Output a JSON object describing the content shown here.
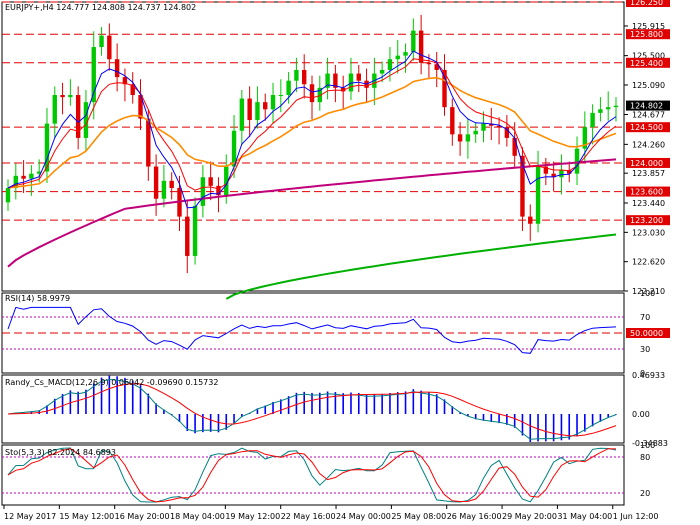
{
  "chart_data": [
    {
      "type": "candlestick",
      "title": "EURJPY+,H4  124.777 124.808 124.737 124.802",
      "ylim": [
        122.21,
        126.25
      ],
      "yticks": [
        122.21,
        122.62,
        123.03,
        123.44,
        123.857,
        124.26,
        124.677,
        125.09,
        125.5,
        125.915
      ],
      "ytick_labels": [
        "122.210",
        "122.620",
        "123.030",
        "123.440",
        "123.857",
        "124.260",
        "124.677",
        "125.090",
        "125.500",
        "125.915"
      ],
      "levels": [
        {
          "value": 126.25,
          "label": "126.250"
        },
        {
          "value": 125.8,
          "label": "125.800"
        },
        {
          "value": 125.4,
          "label": "125.400"
        },
        {
          "value": 124.5,
          "label": "124.500"
        },
        {
          "value": 124.0,
          "label": "124.000"
        },
        {
          "value": 123.6,
          "label": "123.600"
        },
        {
          "value": 123.2,
          "label": "123.200"
        }
      ],
      "current_price": {
        "value": 124.802,
        "label": "124.802"
      },
      "xtick_labels": [
        "12 May 2017",
        "15 May 12:00",
        "16 May 20:00",
        "18 May 04:00",
        "19 May 12:00",
        "22 May 16:00",
        "24 May 00:00",
        "25 May 08:00",
        "26 May 16:00",
        "29 May 20:00",
        "31 May 04:00",
        "1 Jun 12:00"
      ],
      "closes": [
        123.65,
        123.82,
        123.78,
        123.85,
        123.88,
        124.55,
        124.95,
        124.92,
        124.95,
        124.35,
        124.85,
        125.62,
        125.78,
        125.45,
        125.2,
        125.1,
        124.95,
        124.62,
        123.95,
        123.5,
        123.75,
        123.65,
        123.25,
        122.7,
        123.4,
        123.8,
        123.68,
        123.55,
        123.95,
        124.45,
        124.9,
        124.6,
        124.85,
        124.75,
        124.95,
        124.95,
        125.15,
        125.3,
        125.1,
        124.85,
        125.05,
        125.25,
        125.05,
        125.0,
        125.25,
        125.15,
        125.05,
        125.25,
        125.3,
        125.45,
        125.5,
        125.55,
        125.85,
        125.4,
        125.38,
        125.3,
        124.78,
        124.4,
        124.3,
        124.4,
        124.45,
        124.55,
        124.52,
        124.5,
        124.35,
        124.1,
        123.25,
        123.15,
        123.95,
        123.85,
        123.8,
        123.9,
        123.85,
        124.2,
        124.5,
        124.7,
        124.75,
        124.78,
        124.8
      ],
      "series": [
        {
          "name": "",
          "color": "#0000ff"
        },
        {
          "name": "",
          "color": "#ff0000"
        },
        {
          "name": "",
          "color": "#ff8c00"
        },
        {
          "name": "",
          "color": "#c0007a"
        },
        {
          "name": "",
          "color": "#00b000"
        }
      ],
      "up_color": "#00c800",
      "down_color": "#e00000"
    },
    {
      "type": "line",
      "title": "RSI(14) 58.9979",
      "ylim": [
        0,
        100
      ],
      "yticks": [
        0,
        30,
        50,
        70,
        100
      ],
      "levels": [
        {
          "value": 50,
          "label": "50.0000"
        }
      ],
      "series": [
        {
          "name": "RSI(14)",
          "color": "#0000ff"
        }
      ]
    },
    {
      "type": "bar",
      "title": "Randy_Cs_MACD(12,26,9) 0.06042 -0.09690 0.15732",
      "ylim": [
        -0.34883,
        0.46933
      ],
      "yticks": [
        -0.34883,
        0.0,
        0.46933
      ],
      "ytick_labels": [
        "-0.34883",
        "0.00",
        "0.46933"
      ],
      "series": [
        {
          "name": "",
          "color": "#0000ff"
        },
        {
          "name": "",
          "color": "#008080"
        },
        {
          "name": "",
          "color": "#ff0000"
        }
      ]
    },
    {
      "type": "line",
      "title": "Sto(5,3,3) 82.2024 84.6893",
      "ylim": [
        0,
        100
      ],
      "yticks": [
        20,
        80,
        100
      ],
      "series": [
        {
          "name": "",
          "color": "#008080"
        },
        {
          "name": "",
          "color": "#ff0000"
        }
      ]
    }
  ]
}
